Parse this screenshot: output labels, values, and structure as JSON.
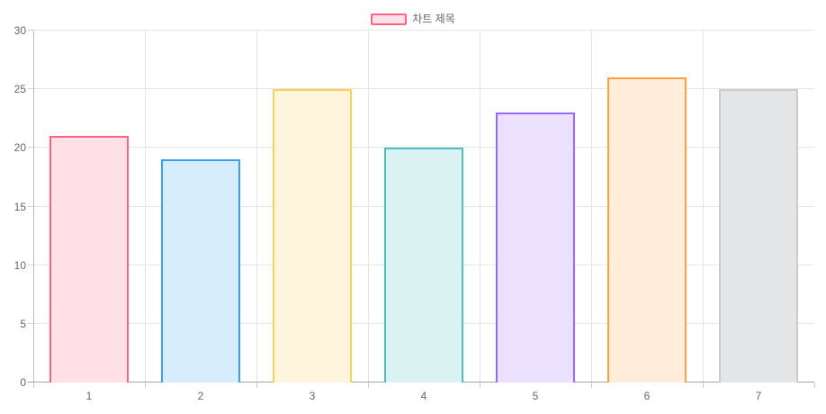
{
  "chart_data": {
    "type": "bar",
    "legend": {
      "label": "차트 제목",
      "fill": "#ffe0e6",
      "border": "#ff6384",
      "position": "top"
    },
    "categories": [
      "1",
      "2",
      "3",
      "4",
      "5",
      "6",
      "7"
    ],
    "series": [
      {
        "name": "차트 제목",
        "values": [
          21,
          19,
          25,
          20,
          23,
          26,
          25
        ]
      }
    ],
    "bar_styles": [
      {
        "fill": "#ffe0e6",
        "border": "#ff6384"
      },
      {
        "fill": "#d7ecfb",
        "border": "#36a2eb"
      },
      {
        "fill": "#fff5dd",
        "border": "#ffce56"
      },
      {
        "fill": "#dbf2f2",
        "border": "#4bc0c0"
      },
      {
        "fill": "#ebe0ff",
        "border": "#9966ff"
      },
      {
        "fill": "#ffecd9",
        "border": "#ff9f40"
      },
      {
        "fill": "#e4e5e7",
        "border": "#c9cbcf"
      }
    ],
    "xlabel": "",
    "ylabel": "",
    "ylim": [
      0,
      30
    ],
    "yticks": [
      0,
      5,
      10,
      15,
      20,
      25,
      30
    ],
    "grid": true
  }
}
